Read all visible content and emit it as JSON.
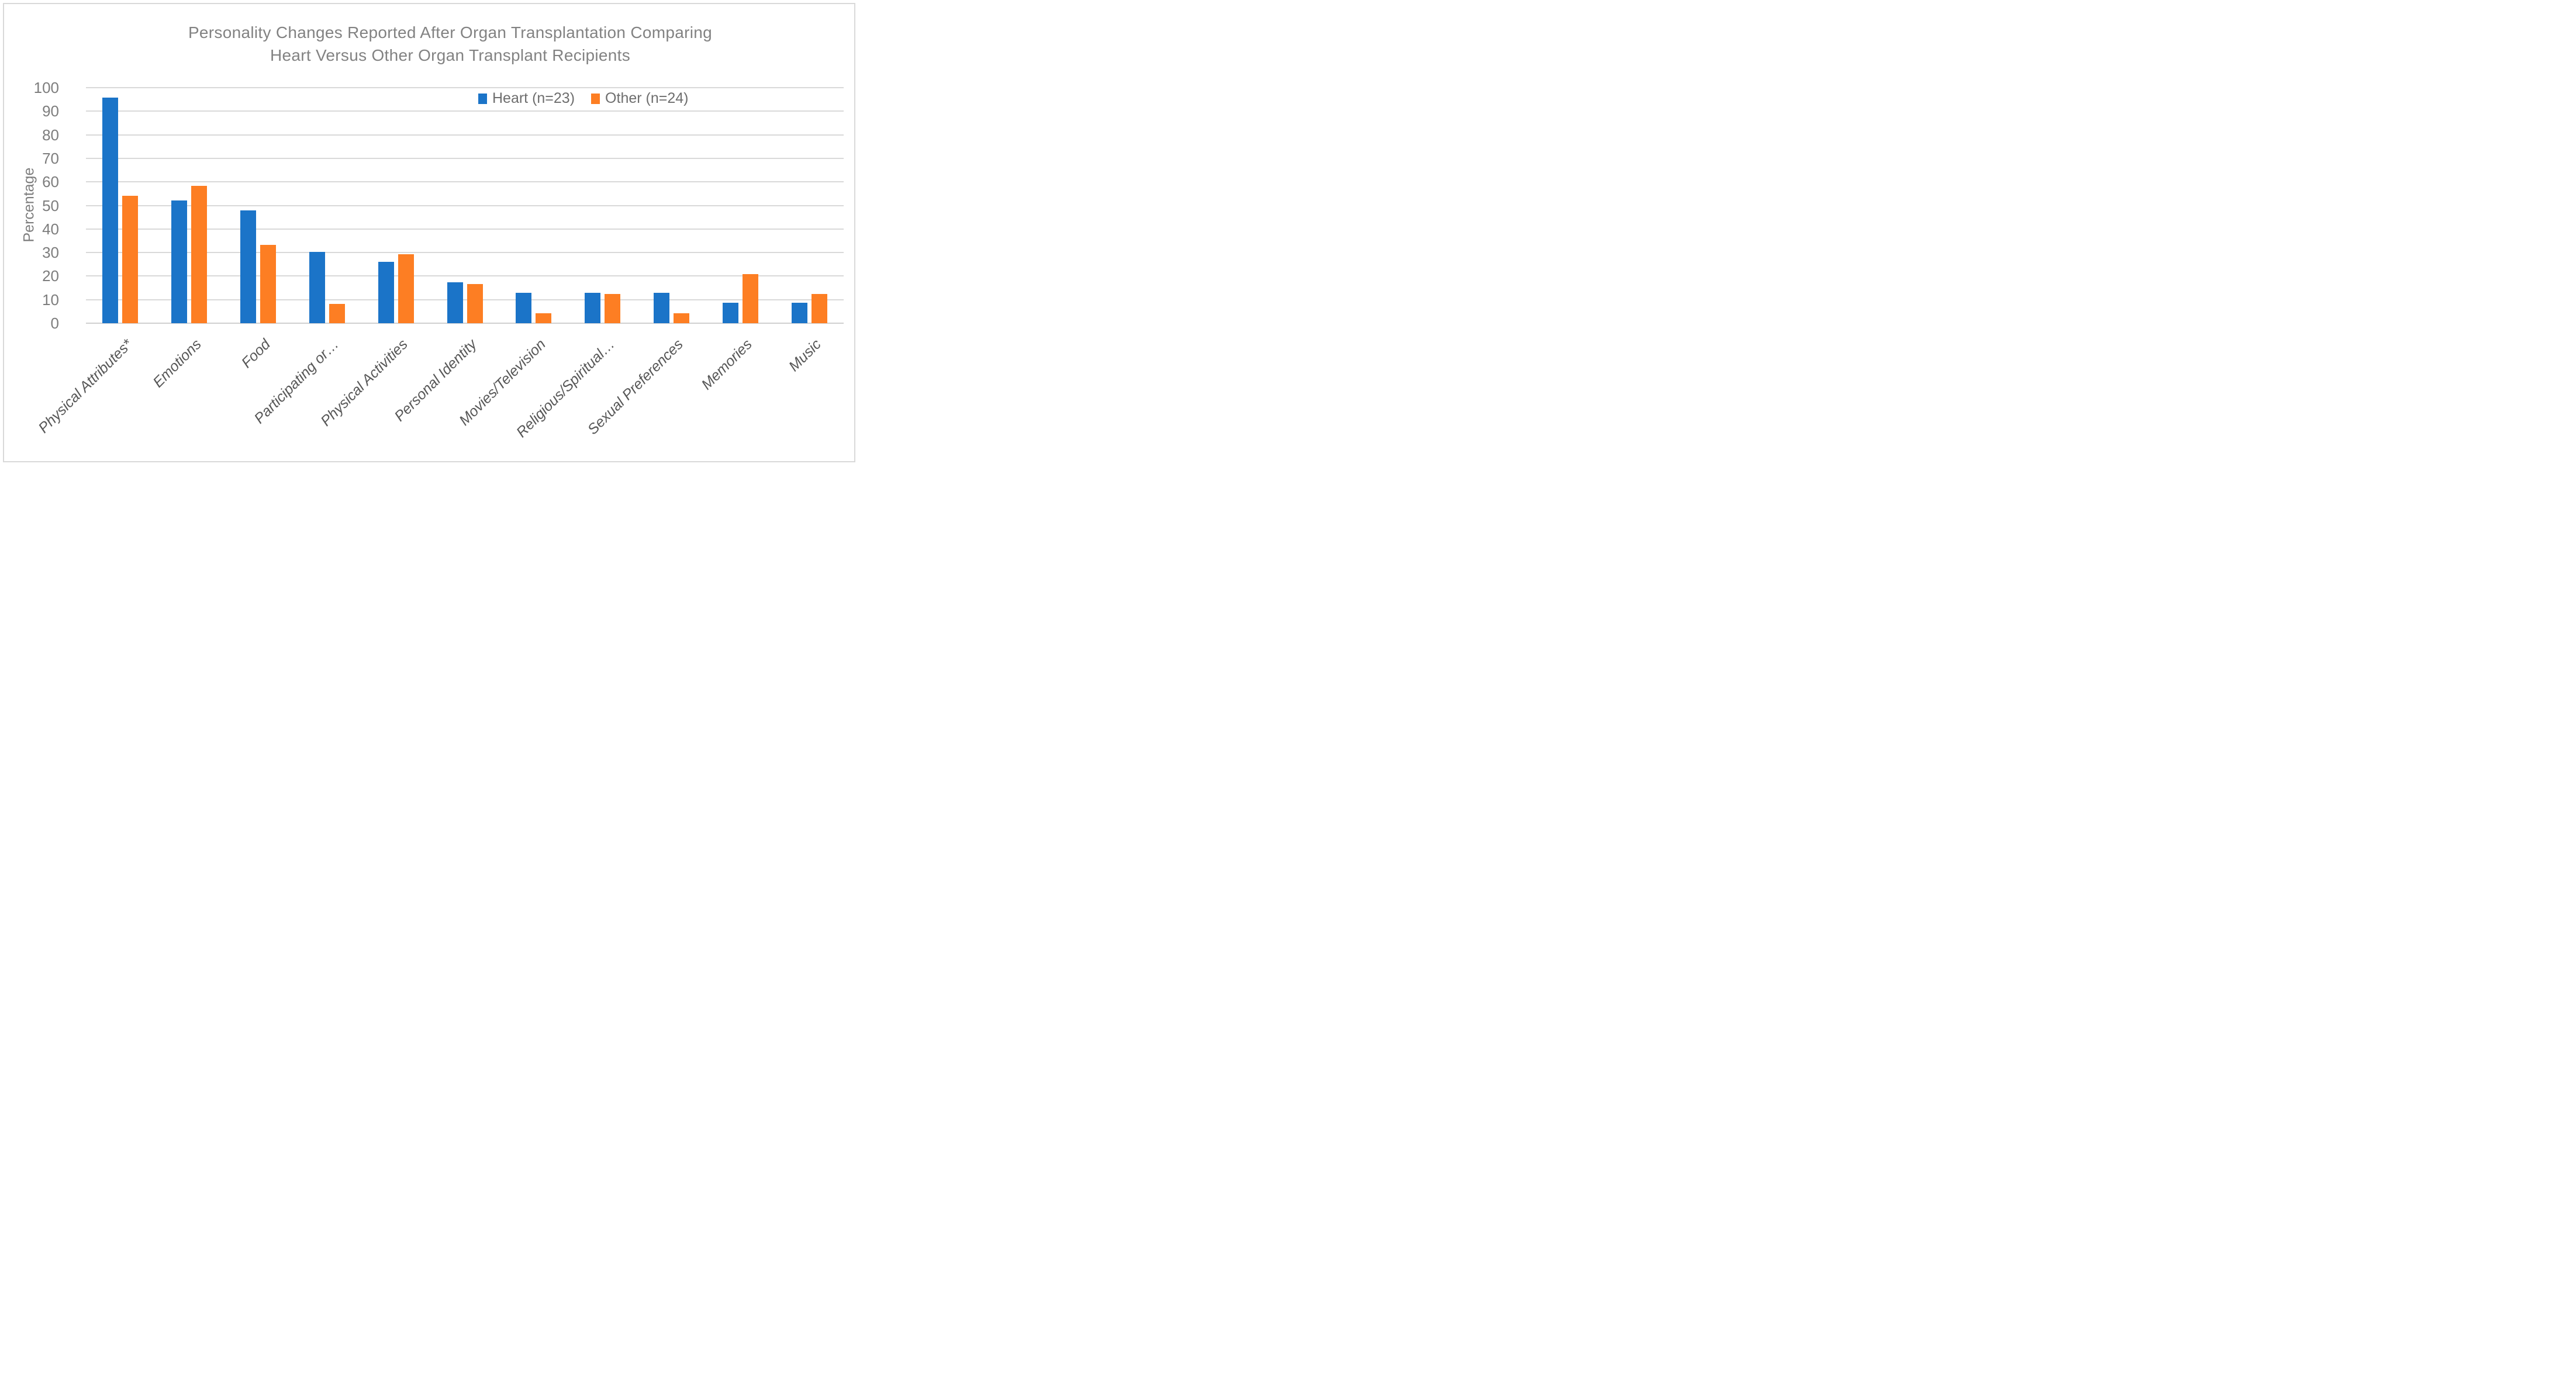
{
  "chart_data": {
    "type": "bar",
    "title": "Personality Changes Reported After Organ Transplantation Comparing Heart Versus Other Organ Transplant Recipients",
    "title_line1": "Personality Changes Reported After Organ Transplantation Comparing",
    "title_line2": "Heart Versus Other Organ Transplant Recipients",
    "xlabel": "",
    "ylabel": "Percentage",
    "ylim": [
      0,
      100
    ],
    "yticks": [
      0,
      10,
      20,
      30,
      40,
      50,
      60,
      70,
      80,
      90,
      100
    ],
    "grid": true,
    "legend_position": "top-right-inside",
    "categories": [
      "Physical Attributes*",
      "Emotions",
      "Food",
      "Participating or…",
      "Physical Activities",
      "Personal Identity",
      "Movies/Television",
      "Religious/Spiritual…",
      "Sexual Preferences",
      "Memories",
      "Music"
    ],
    "series": [
      {
        "name": "Heart (n=23)",
        "color": "#1b74c8",
        "values": [
          95.7,
          52.2,
          47.8,
          30.4,
          26.1,
          17.4,
          13,
          13,
          13,
          8.7,
          8.7
        ]
      },
      {
        "name": "Other (n=24)",
        "color": "#fd7e23",
        "values": [
          54.2,
          58.3,
          33.3,
          8.3,
          29.2,
          16.7,
          4.2,
          12.5,
          4.2,
          20.8,
          12.5
        ]
      }
    ]
  },
  "colors": {
    "heart_blue": "#1b74c8",
    "other_orange": "#fd7e23",
    "gridline": "#d9d9d9",
    "frame_border": "#d9d9d9",
    "title_text": "#828282",
    "axis_text": "#7d7d7d",
    "category_text": "#575757",
    "background": "#ffffff"
  }
}
